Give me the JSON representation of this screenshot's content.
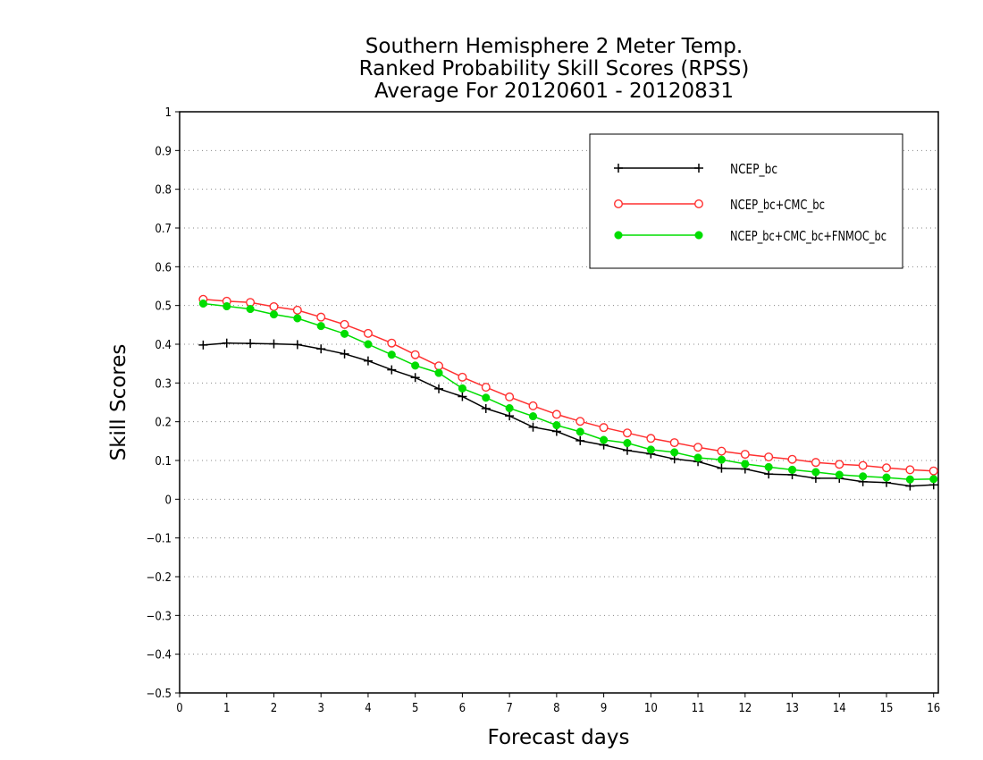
{
  "chart_data": {
    "type": "line",
    "title_lines": [
      "Southern Hemisphere 2 Meter Temp.",
      "Ranked Probability Skill Scores (RPSS)",
      "Average For 20120601 - 20120831"
    ],
    "xlabel": "Forecast days",
    "ylabel": "Skill Scores",
    "xlim": [
      0,
      16.1
    ],
    "ylim": [
      -0.5,
      1
    ],
    "x_ticks": [
      0,
      1,
      2,
      3,
      4,
      5,
      6,
      7,
      8,
      9,
      10,
      11,
      12,
      13,
      14,
      15,
      16
    ],
    "y_ticks": [
      -0.5,
      -0.4,
      -0.3,
      -0.2,
      -0.1,
      0,
      0.1,
      0.2,
      0.3,
      0.4,
      0.5,
      0.6,
      0.7,
      0.8,
      0.9,
      1
    ],
    "y_tick_labels": [
      "−0.5",
      "−0.4",
      "−0.3",
      "−0.2",
      "−0.1",
      "0",
      "0.1",
      "0.2",
      "0.3",
      "0.4",
      "0.5",
      "0.6",
      "0.7",
      "0.8",
      "0.9",
      "1"
    ],
    "grid": "horizontal dotted",
    "legend_position": "top-right",
    "x": [
      0.5,
      1,
      1.5,
      2,
      2.5,
      3,
      3.5,
      4,
      4.5,
      5,
      5.5,
      6,
      6.5,
      7,
      7.5,
      8,
      8.5,
      9,
      9.5,
      10,
      10.5,
      11,
      11.5,
      12,
      12.5,
      13,
      13.5,
      14,
      14.5,
      15,
      15.5,
      16
    ],
    "series": [
      {
        "name": "NCEP_bc",
        "color": "#000000",
        "marker": "plus",
        "values": [
          0.398,
          0.403,
          0.402,
          0.401,
          0.399,
          0.388,
          0.375,
          0.357,
          0.334,
          0.314,
          0.285,
          0.265,
          0.234,
          0.215,
          0.186,
          0.175,
          0.151,
          0.14,
          0.126,
          0.117,
          0.104,
          0.097,
          0.08,
          0.078,
          0.065,
          0.063,
          0.054,
          0.054,
          0.045,
          0.043,
          0.034,
          0.037
        ]
      },
      {
        "name": "NCEP_bc+CMC_bc",
        "color": "#ff3030",
        "marker": "open-circle",
        "values": [
          0.516,
          0.511,
          0.508,
          0.497,
          0.488,
          0.47,
          0.451,
          0.428,
          0.403,
          0.373,
          0.344,
          0.315,
          0.289,
          0.264,
          0.241,
          0.219,
          0.201,
          0.185,
          0.171,
          0.157,
          0.146,
          0.134,
          0.124,
          0.116,
          0.109,
          0.103,
          0.095,
          0.09,
          0.087,
          0.081,
          0.076,
          0.073
        ]
      },
      {
        "name": "NCEP_bc+CMC_bc+FNMOC_bc",
        "color": "#00dd00",
        "marker": "filled-circle",
        "values": [
          0.505,
          0.498,
          0.491,
          0.477,
          0.467,
          0.447,
          0.427,
          0.4,
          0.373,
          0.345,
          0.326,
          0.286,
          0.262,
          0.235,
          0.214,
          0.191,
          0.174,
          0.153,
          0.145,
          0.128,
          0.121,
          0.107,
          0.102,
          0.091,
          0.083,
          0.076,
          0.07,
          0.063,
          0.059,
          0.056,
          0.051,
          0.052
        ]
      }
    ]
  }
}
